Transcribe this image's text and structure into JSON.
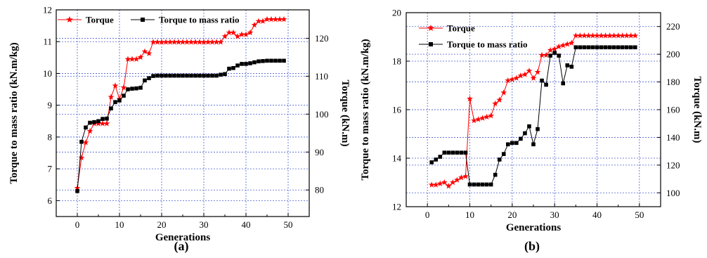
{
  "chart_data": [
    {
      "type": "line",
      "panel_label": "(a)",
      "xlabel": "Generations",
      "ylabel_left": "Torque to mass ratio (kN.m/kg)",
      "ylabel_right": "Torque (kN.m)",
      "xlim": [
        -5,
        55
      ],
      "ylim_left": [
        5.5,
        12
      ],
      "ylim_right": [
        73,
        127.5
      ],
      "xticks": [
        "0",
        "10",
        "20",
        "30",
        "40",
        "50"
      ],
      "yticks_left": [
        "6",
        "7",
        "8",
        "9",
        "10",
        "11",
        "12"
      ],
      "yticks_right": [
        "80",
        "90",
        "100",
        "110",
        "120"
      ],
      "grid": true,
      "legend_position": "top",
      "colors": {
        "torque": "#ff0000",
        "ratio": "#000000"
      },
      "series": [
        {
          "name": "Torque",
          "axis": "right",
          "marker": "star",
          "x": [
            0,
            1,
            2,
            3,
            4,
            5,
            6,
            7,
            8,
            9,
            10,
            11,
            12,
            13,
            14,
            15,
            16,
            17,
            18,
            19,
            20,
            21,
            22,
            23,
            24,
            25,
            26,
            27,
            28,
            29,
            30,
            31,
            32,
            33,
            34,
            35,
            36,
            37,
            38,
            39,
            40,
            41,
            42,
            43,
            44,
            45,
            46,
            47,
            48,
            49
          ],
          "values": [
            80.5,
            88.5,
            92.5,
            95.5,
            97.5,
            97.5,
            97.5,
            97.5,
            104.5,
            107.5,
            104,
            107,
            114.5,
            114.5,
            114.5,
            115,
            116.5,
            116,
            119,
            119,
            119,
            119,
            119,
            119,
            119,
            119,
            119,
            119,
            119,
            119,
            119,
            119,
            119,
            119,
            119,
            120.5,
            121.5,
            121.5,
            120.5,
            121,
            121,
            121.5,
            123.5,
            124.5,
            124.5,
            125,
            125,
            125,
            125,
            125
          ]
        },
        {
          "name": "Torque to mass ratio",
          "axis": "left",
          "marker": "square",
          "x": [
            0,
            1,
            2,
            3,
            4,
            5,
            6,
            7,
            8,
            9,
            10,
            11,
            12,
            13,
            14,
            15,
            16,
            17,
            18,
            19,
            20,
            21,
            22,
            23,
            24,
            25,
            26,
            27,
            28,
            29,
            30,
            31,
            32,
            33,
            34,
            35,
            36,
            37,
            38,
            39,
            40,
            41,
            42,
            43,
            44,
            45,
            46,
            47,
            48,
            49
          ],
          "values": [
            6.3,
            7.85,
            8.3,
            8.45,
            8.47,
            8.5,
            8.57,
            8.58,
            8.9,
            9.1,
            9.15,
            9.3,
            9.5,
            9.52,
            9.53,
            9.55,
            9.78,
            9.85,
            9.92,
            9.93,
            9.93,
            9.93,
            9.93,
            9.93,
            9.93,
            9.93,
            9.93,
            9.93,
            9.93,
            9.93,
            9.93,
            9.93,
            9.93,
            9.93,
            9.96,
            9.98,
            10.15,
            10.17,
            10.25,
            10.3,
            10.3,
            10.32,
            10.35,
            10.38,
            10.39,
            10.4,
            10.4,
            10.4,
            10.4,
            10.4
          ]
        }
      ]
    },
    {
      "type": "line",
      "panel_label": "(b)",
      "xlabel": "Generations",
      "ylabel_left": "Torque to mass ratio (kN.m/kg)",
      "ylabel_right": "Torque (kN.m)",
      "xlim": [
        -5,
        55
      ],
      "ylim_left": [
        12,
        20
      ],
      "ylim_right": [
        90,
        230
      ],
      "xticks": [
        "0",
        "10",
        "20",
        "30",
        "40",
        "50"
      ],
      "yticks_left": [
        "12",
        "14",
        "16",
        "18",
        "20"
      ],
      "yticks_right": [
        "100",
        "120",
        "140",
        "160",
        "180",
        "200",
        "220"
      ],
      "grid": true,
      "legend_position": "top-left",
      "colors": {
        "torque": "#ff0000",
        "ratio": "#000000"
      },
      "series": [
        {
          "name": "Torque",
          "axis": "left",
          "marker": "star",
          "x": [
            1,
            2,
            3,
            4,
            5,
            6,
            7,
            8,
            9,
            10,
            11,
            12,
            13,
            14,
            15,
            16,
            17,
            18,
            19,
            20,
            21,
            22,
            23,
            24,
            25,
            26,
            27,
            28,
            29,
            30,
            31,
            32,
            33,
            34,
            35,
            36,
            37,
            38,
            39,
            40,
            41,
            42,
            43,
            44,
            45,
            46,
            47,
            48,
            49
          ],
          "values": [
            12.9,
            12.9,
            12.95,
            13.0,
            12.85,
            13.0,
            13.1,
            13.2,
            13.25,
            16.45,
            15.55,
            15.6,
            15.65,
            15.7,
            15.75,
            16.25,
            16.4,
            16.7,
            17.2,
            17.25,
            17.3,
            17.4,
            17.45,
            17.6,
            17.3,
            17.55,
            18.25,
            18.25,
            18.45,
            18.5,
            18.6,
            18.65,
            18.7,
            18.75,
            19.05,
            19.05,
            19.05,
            19.05,
            19.05,
            19.05,
            19.05,
            19.05,
            19.05,
            19.05,
            19.05,
            19.05,
            19.05,
            19.05,
            19.05
          ]
        },
        {
          "name": "Torque to mass ratio",
          "axis": "right",
          "marker": "square",
          "x": [
            1,
            2,
            3,
            4,
            5,
            6,
            7,
            8,
            9,
            10,
            11,
            12,
            13,
            14,
            15,
            16,
            17,
            18,
            19,
            20,
            21,
            22,
            23,
            24,
            25,
            26,
            27,
            28,
            29,
            30,
            31,
            32,
            33,
            34,
            35,
            36,
            37,
            38,
            39,
            40,
            41,
            42,
            43,
            44,
            45,
            46,
            47,
            48,
            49
          ],
          "values": [
            122,
            124,
            126,
            129,
            129,
            129,
            129,
            129,
            129,
            106,
            106,
            106,
            106,
            106,
            106,
            113,
            124,
            128,
            135,
            136,
            136,
            139,
            143,
            148,
            135,
            146,
            181,
            178,
            199,
            201,
            199,
            179,
            192,
            191,
            205,
            205,
            205,
            205,
            205,
            205,
            205,
            205,
            205,
            205,
            205,
            205,
            205,
            205,
            205
          ]
        }
      ]
    }
  ]
}
